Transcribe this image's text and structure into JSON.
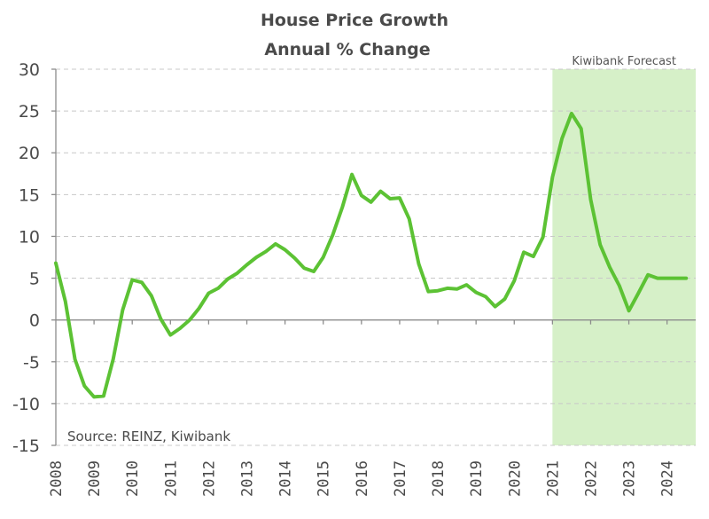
{
  "chart_data": {
    "type": "line",
    "title": "House Price Growth",
    "subtitle": "Annual % Change",
    "xlabel": "",
    "ylabel": "",
    "ylim": [
      -15,
      30
    ],
    "xlim": [
      2008,
      2024.75
    ],
    "yticks": [
      30,
      25,
      20,
      15,
      10,
      5,
      0,
      -5,
      -10,
      -15
    ],
    "xtick_labels": [
      "2008",
      "2009",
      "2010",
      "2011",
      "2012",
      "2013",
      "2014",
      "2015",
      "2016",
      "2017",
      "2018",
      "2019",
      "2020",
      "2021",
      "2022",
      "2023",
      "2024"
    ],
    "grid": "horizontal-dashed",
    "source_note": "Source: REINZ, Kiwibank",
    "forecast_band": {
      "label": "Kiwibank Forecast",
      "start": 2021.0,
      "end": 2024.75,
      "color": "#d6f0c8"
    },
    "series": [
      {
        "name": "House Price Growth (annual %)",
        "color": "#5cc234",
        "x": [
          2008.0,
          2008.25,
          2008.5,
          2008.75,
          2009.0,
          2009.25,
          2009.5,
          2009.75,
          2010.0,
          2010.25,
          2010.5,
          2010.75,
          2011.0,
          2011.25,
          2011.5,
          2011.75,
          2012.0,
          2012.25,
          2012.5,
          2012.75,
          2013.0,
          2013.25,
          2013.5,
          2013.75,
          2014.0,
          2014.25,
          2014.5,
          2014.75,
          2015.0,
          2015.25,
          2015.5,
          2015.75,
          2016.0,
          2016.25,
          2016.5,
          2016.75,
          2017.0,
          2017.25,
          2017.5,
          2017.75,
          2018.0,
          2018.25,
          2018.5,
          2018.75,
          2019.0,
          2019.25,
          2019.5,
          2019.75,
          2020.0,
          2020.25,
          2020.5,
          2020.75,
          2021.0,
          2021.25,
          2021.5,
          2021.75,
          2022.0,
          2022.25,
          2022.5,
          2022.75,
          2023.0,
          2023.25,
          2023.5,
          2023.75,
          2024.0,
          2024.25,
          2024.5
        ],
        "values": [
          6.8,
          2.2,
          -4.7,
          -7.9,
          -9.2,
          -9.1,
          -4.7,
          1.2,
          4.8,
          4.5,
          2.9,
          0.1,
          -1.8,
          -1.0,
          0.0,
          1.4,
          3.2,
          3.8,
          4.9,
          5.6,
          6.6,
          7.5,
          8.2,
          9.1,
          8.4,
          7.4,
          6.2,
          5.8,
          7.5,
          10.2,
          13.5,
          17.4,
          14.9,
          14.1,
          15.4,
          14.5,
          14.6,
          12.1,
          6.7,
          3.4,
          3.5,
          3.8,
          3.7,
          4.2,
          3.3,
          2.8,
          1.6,
          2.5,
          4.7,
          8.1,
          7.6,
          9.9,
          17.1,
          21.7,
          24.7,
          22.9,
          14.4,
          9.0,
          6.3,
          4.1,
          1.1,
          3.2,
          5.4,
          5.0,
          5.0,
          5.0,
          5.0
        ]
      }
    ]
  }
}
